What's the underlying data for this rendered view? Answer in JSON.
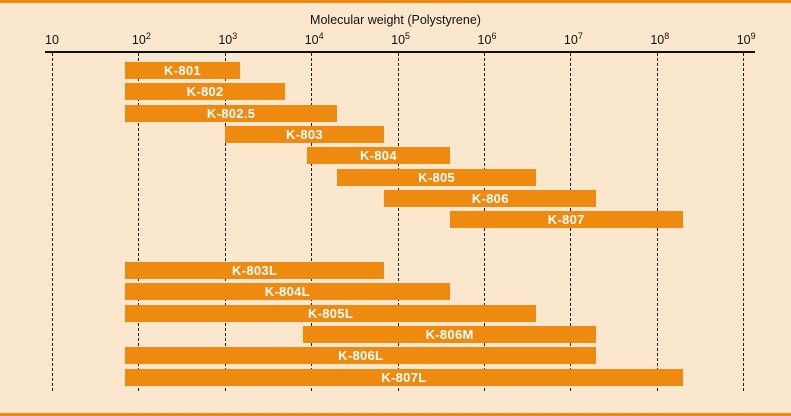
{
  "figure": {
    "kind": "catalog-range-chart",
    "colors": {
      "background": "#fae7cd",
      "bar": "#ee8a10",
      "border": "#ee8a10",
      "grid": "#1c1c1c",
      "text": "#111111",
      "bar_label": "#ffffff"
    }
  },
  "chart_data": {
    "type": "bar",
    "orientation": "horizontal-range",
    "title": "Molecular weight (Polystyrene)",
    "x_scale": "log",
    "x_range": [
      10,
      1000000000
    ],
    "grid": "dashed-vertical",
    "legend": "none",
    "x_ticks": [
      {
        "base": "10",
        "exp": "",
        "value": 10
      },
      {
        "base": "10",
        "exp": "2",
        "value": 100
      },
      {
        "base": "10",
        "exp": "3",
        "value": 1000
      },
      {
        "base": "10",
        "exp": "4",
        "value": 10000
      },
      {
        "base": "10",
        "exp": "5",
        "value": 100000
      },
      {
        "base": "10",
        "exp": "6",
        "value": 1000000
      },
      {
        "base": "10",
        "exp": "7",
        "value": 10000000
      },
      {
        "base": "10",
        "exp": "8",
        "value": 100000000
      },
      {
        "base": "10",
        "exp": "9",
        "value": 1000000000
      }
    ],
    "series": [
      {
        "name": "K-801",
        "group": 1,
        "row": 0,
        "min": 70,
        "max": 1500
      },
      {
        "name": "K-802",
        "group": 1,
        "row": 1,
        "min": 70,
        "max": 5000
      },
      {
        "name": "K-802.5",
        "group": 1,
        "row": 2,
        "min": 70,
        "max": 20000
      },
      {
        "name": "K-803",
        "group": 1,
        "row": 3,
        "min": 1000,
        "max": 70000
      },
      {
        "name": "K-804",
        "group": 1,
        "row": 4,
        "min": 9000,
        "max": 400000
      },
      {
        "name": "K-805",
        "group": 1,
        "row": 5,
        "min": 20000,
        "max": 4000000
      },
      {
        "name": "K-806",
        "group": 1,
        "row": 6,
        "min": 70000,
        "max": 20000000
      },
      {
        "name": "K-807",
        "group": 1,
        "row": 7,
        "min": 400000,
        "max": 200000000
      },
      {
        "name": "K-803L",
        "group": 2,
        "row": 0,
        "min": 70,
        "max": 70000
      },
      {
        "name": "K-804L",
        "group": 2,
        "row": 1,
        "min": 70,
        "max": 400000
      },
      {
        "name": "K-805L",
        "group": 2,
        "row": 2,
        "min": 70,
        "max": 4000000
      },
      {
        "name": "K-806M",
        "group": 2,
        "row": 3,
        "min": 8000,
        "max": 20000000
      },
      {
        "name": "K-806L",
        "group": 2,
        "row": 4,
        "min": 70,
        "max": 20000000
      },
      {
        "name": "K-807L",
        "group": 2,
        "row": 5,
        "min": 70,
        "max": 200000000
      }
    ]
  }
}
